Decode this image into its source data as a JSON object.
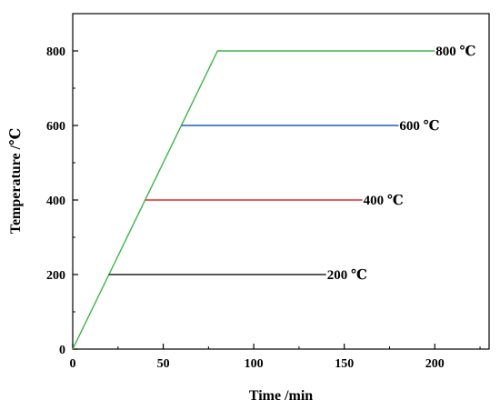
{
  "chart_data": {
    "type": "line",
    "xlabel": "Time /min",
    "ylabel": "Temperature /℃",
    "xlim": [
      0,
      230
    ],
    "ylim": [
      0,
      900
    ],
    "x_ticks": [
      "0",
      "50",
      "100",
      "150",
      "200"
    ],
    "y_ticks": [
      "0",
      "200",
      "400",
      "600",
      "800"
    ],
    "grid": false,
    "series": [
      {
        "name": "800 ℃",
        "color": "#3cb44b",
        "points": [
          [
            0,
            0
          ],
          [
            80,
            800
          ],
          [
            200,
            800
          ]
        ]
      },
      {
        "name": "600 ℃",
        "color": "#1f5fbf",
        "points": [
          [
            60,
            600
          ],
          [
            180,
            600
          ]
        ]
      },
      {
        "name": "400 ℃",
        "color": "#e8262b",
        "points": [
          [
            40,
            400
          ],
          [
            160,
            400
          ]
        ]
      },
      {
        "name": "200 ℃",
        "color": "#222222",
        "points": [
          [
            20,
            200
          ],
          [
            140,
            200
          ]
        ]
      }
    ]
  }
}
